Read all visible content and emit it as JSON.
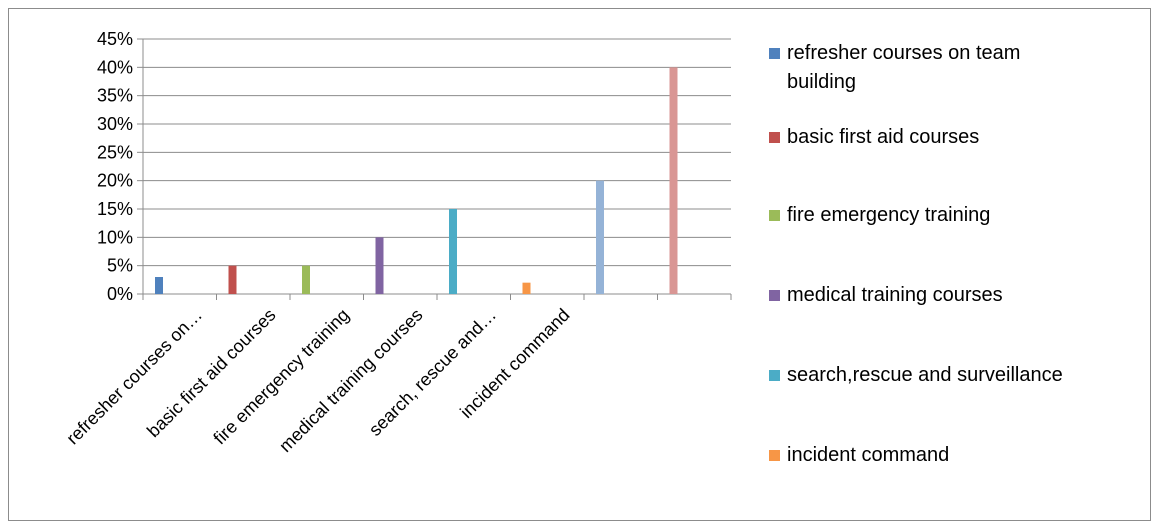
{
  "chart_data": {
    "type": "bar",
    "categories": [
      "refresher courses on…",
      "basic first aid courses",
      "fire emergency training",
      "medical training courses",
      "search, rescue and…",
      "incident command",
      "",
      ""
    ],
    "values": [
      0.03,
      0.05,
      0.05,
      0.1,
      0.15,
      0.02,
      0.2,
      0.4
    ],
    "bar_colors": [
      "#4F81BD",
      "#C0504D",
      "#9BBB59",
      "#8064A2",
      "#4BACC6",
      "#F79646",
      "#95B3D7",
      "#D99694"
    ],
    "ylim": [
      0,
      0.45
    ],
    "y_ticks": [
      "0%",
      "5%",
      "10%",
      "15%",
      "20%",
      "25%",
      "30%",
      "35%",
      "40%",
      "45%"
    ],
    "grid": true,
    "legend_position": "right",
    "legend": [
      {
        "label": "refresher courses on team building",
        "color": "#4F81BD"
      },
      {
        "label": "basic first aid courses",
        "color": "#C0504D"
      },
      {
        "label": "fire emergency training",
        "color": "#9BBB59"
      },
      {
        "label": "medical training courses",
        "color": "#8064A2"
      },
      {
        "label": "search,rescue and surveillance",
        "color": "#4BACC6"
      },
      {
        "label": "incident command",
        "color": "#F79646"
      }
    ]
  }
}
